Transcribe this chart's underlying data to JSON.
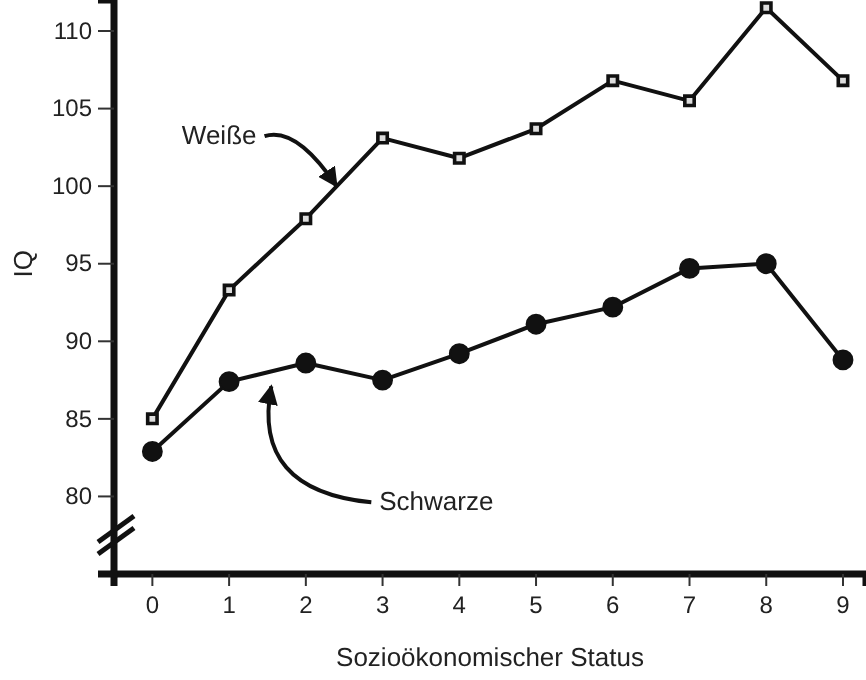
{
  "chart_data": {
    "type": "line",
    "xlabel": "Sozioökonomischer Status",
    "ylabel": "IQ",
    "x": [
      0,
      1,
      2,
      3,
      4,
      5,
      6,
      7,
      8,
      9
    ],
    "xlim": [
      -0.5,
      9.3
    ],
    "xticks": [
      0,
      1,
      2,
      3,
      4,
      5,
      6,
      7,
      8,
      9
    ],
    "ylim": [
      75,
      112
    ],
    "yticks": [
      80,
      85,
      90,
      95,
      100,
      105,
      110
    ],
    "grid": false,
    "line_style": "solid",
    "series": [
      {
        "color": "#111111",
        "marker": "square",
        "values": [
          85,
          93.3,
          97.9,
          103.1,
          101.8,
          103.7,
          106.8,
          105.5,
          111.5,
          106.8
        ]
      },
      {
        "color": "#111111",
        "marker": "circle",
        "values": [
          82.9,
          87.4,
          88.6,
          87.5,
          89.2,
          91.1,
          92.2,
          94.7,
          95.0,
          88.8
        ]
      }
    ],
    "annotations": [
      {
        "text": "Weiße",
        "x": 2.4,
        "y": 100.0
      },
      {
        "text": "Schwarze",
        "x": 1.55,
        "y": 88.0
      }
    ]
  }
}
